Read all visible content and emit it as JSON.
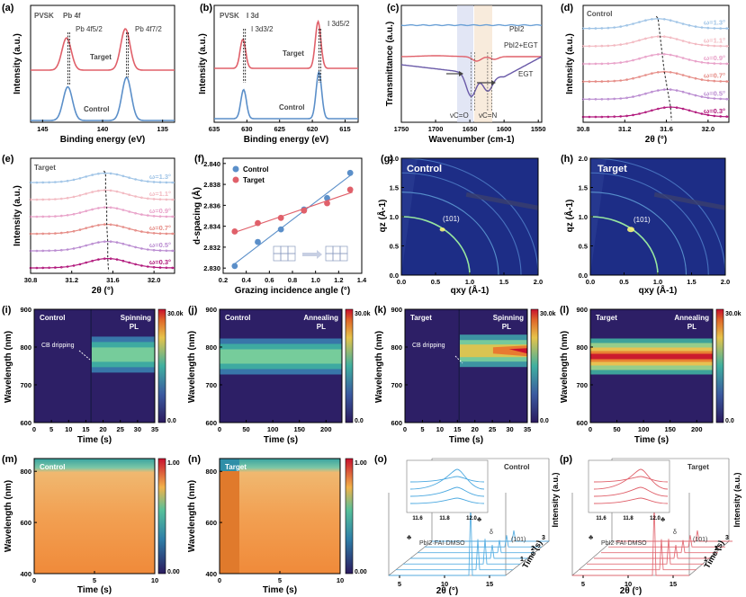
{
  "colors": {
    "control": "#5b8fc9",
    "target": "#e0606a",
    "pbi2_ir": "#6aa0d6",
    "pbi2egt_ir": "#e0606a",
    "egt_ir": "#6a5aa8",
    "heat_low": "#2b1a5e",
    "heat_high": "#c8102e"
  },
  "panels": {
    "a": {
      "letter": "(a)",
      "corner": "PVSK",
      "peak1_label": "Pb 4f5/2",
      "peak2_label": "Pb 4f7/2",
      "title_label": "Pb 4f",
      "series_top": "Target",
      "series_bottom": "Control",
      "xlabel": "Binding energy (eV)",
      "ylabel": "Intensity (a.u.)",
      "xticks": [
        "145",
        "140",
        "135"
      ]
    },
    "b": {
      "letter": "(b)",
      "corner": "PVSK",
      "title_label": "I 3d",
      "peak1_label": "I 3d3/2",
      "peak2_label": "I 3d5/2",
      "series_top": "Target",
      "series_bottom": "Control",
      "xlabel": "Binding energy (eV)",
      "ylabel": "Intensity (a.u.)",
      "xticks": [
        "635",
        "630",
        "625",
        "620",
        "615"
      ]
    },
    "c": {
      "letter": "(c)",
      "series": [
        "PbI2",
        "PbI2+EGT",
        "EGT"
      ],
      "mode1": "νC=O",
      "mode2": "νC=N",
      "xlabel": "Wavenumber (cm-1)",
      "ylabel": "Transmittance (a.u.)",
      "xticks": [
        "1750",
        "1700",
        "1650",
        "1600",
        "1550"
      ]
    },
    "d": {
      "letter": "(d)",
      "corner": "Control",
      "angles": [
        "ω=1.3°",
        "ω=1.1°",
        "ω=0.9°",
        "ω=0.7°",
        "ω=0.5°",
        "ω=0.3°"
      ],
      "xlabel": "2θ (°)",
      "ylabel": "Intensity (a.u.)",
      "xticks": [
        "30.8",
        "31.2",
        "31.6",
        "32.0"
      ]
    },
    "e": {
      "letter": "(e)",
      "corner": "Target",
      "angles": [
        "ω=1.3°",
        "ω=1.1°",
        "ω=0.9°",
        "ω=0.7°",
        "ω=0.5°",
        "ω=0.3°"
      ],
      "xlabel": "2θ (°)",
      "ylabel": "Intensity (a.u.)",
      "xticks": [
        "30.8",
        "31.2",
        "31.6",
        "32.0"
      ]
    },
    "f": {
      "letter": "(f)",
      "legend": [
        "Control",
        "Target"
      ],
      "xlabel": "Grazing incidence angle (°)",
      "ylabel": "d-spacing (Å)",
      "xticks": [
        "0.2",
        "0.4",
        "0.6",
        "0.8",
        "1.0",
        "1.2",
        "1.4"
      ],
      "yticks": [
        "2.830",
        "2.832",
        "2.834",
        "2.836",
        "2.838",
        "2.840"
      ]
    },
    "g": {
      "letter": "(g)",
      "corner": "Control",
      "peak": "(101)",
      "xlabel": "qxy (Å-1)",
      "ylabel": "qz (Å-1)",
      "xticks": [
        "0.0",
        "0.5",
        "1.0",
        "1.5",
        "2.0"
      ],
      "yticks": [
        "0.0",
        "0.5",
        "1.0",
        "1.5",
        "2.0"
      ]
    },
    "h": {
      "letter": "(h)",
      "corner": "Target",
      "peak": "(101)",
      "xlabel": "qxy (Å-1)",
      "ylabel": "qz (Å-1)",
      "xticks": [
        "0.0",
        "0.5",
        "1.0",
        "1.5",
        "2.0"
      ],
      "yticks": [
        "0.0",
        "0.5",
        "1.0",
        "1.5",
        "2.0"
      ]
    },
    "i": {
      "letter": "(i)",
      "corner": "Control",
      "mode": "Spinning",
      "mode2": "PL",
      "annot": "CB dripping",
      "xlabel": "Time (s)",
      "ylabel": "Wavelength (nm)",
      "xticks": [
        "0",
        "5",
        "10",
        "15",
        "20",
        "25",
        "30",
        "35"
      ],
      "yticks": [
        "600",
        "700",
        "800",
        "900"
      ],
      "cbar": [
        "30.0k",
        "0.0"
      ]
    },
    "j": {
      "letter": "(j)",
      "corner": "Control",
      "mode": "Annealing",
      "mode2": "PL",
      "xlabel": "Time (s)",
      "ylabel": "Wavelength (nm)",
      "xticks": [
        "0",
        "50",
        "100",
        "150",
        "200"
      ],
      "yticks": [
        "600",
        "700",
        "800",
        "900"
      ],
      "cbar": [
        "30.0k",
        "0.0"
      ]
    },
    "k": {
      "letter": "(k)",
      "corner": "Target",
      "mode": "Spinning",
      "mode2": "PL",
      "annot": "CB dripping",
      "xlabel": "Time (s)",
      "ylabel": "Wavelength (nm)",
      "xticks": [
        "0",
        "5",
        "10",
        "15",
        "20",
        "25",
        "30",
        "35"
      ],
      "yticks": [
        "600",
        "700",
        "800",
        "900"
      ],
      "cbar": [
        "30.0k",
        "0.0"
      ]
    },
    "l": {
      "letter": "(l)",
      "corner": "Target",
      "mode": "Annealing",
      "mode2": "PL",
      "xlabel": "Time (s)",
      "ylabel": "Wavelength (nm)",
      "xticks": [
        "0",
        "50",
        "100",
        "150",
        "200"
      ],
      "yticks": [
        "600",
        "700",
        "800",
        "900"
      ],
      "cbar": [
        "30.0k",
        "0.0"
      ]
    },
    "m": {
      "letter": "(m)",
      "corner": "Control",
      "xlabel": "Time (s)",
      "ylabel": "Wavelength (nm)",
      "xticks": [
        "0",
        "5",
        "10"
      ],
      "yticks": [
        "400",
        "600",
        "800"
      ],
      "cbar": [
        "1.00",
        "0.00"
      ]
    },
    "n": {
      "letter": "(n)",
      "corner": "Target",
      "xlabel": "Time (s)",
      "ylabel": "Wavelength (nm)",
      "xticks": [
        "0",
        "5",
        "10"
      ],
      "yticks": [
        "400",
        "600",
        "800"
      ],
      "cbar": [
        "1.00",
        "0.00"
      ]
    },
    "o": {
      "letter": "(o)",
      "corner": "Control",
      "phase": "PbI2·FAI·DMSO",
      "peak": "(101)",
      "xlabel": "2θ (°)",
      "zlabel": "Intensity (a.u.)",
      "tlabel": "Time (s)",
      "xticks": [
        "5",
        "10",
        "15"
      ],
      "inset_ticks": [
        "11.6",
        "11.8",
        "12.0"
      ],
      "tticks": [
        "1",
        "2",
        "3"
      ]
    },
    "p": {
      "letter": "(p)",
      "corner": "Target",
      "phase": "PbI2·FAI·DMSO",
      "peak": "(101)",
      "xlabel": "2θ (°)",
      "zlabel": "Intensity (a.u.)",
      "tlabel": "Time (s)",
      "xticks": [
        "5",
        "10",
        "15"
      ],
      "inset_ticks": [
        "11.6",
        "11.8",
        "12.0"
      ],
      "tticks": [
        "1",
        "2",
        "3"
      ]
    }
  },
  "chart_data": [
    {
      "id": "a",
      "type": "line",
      "title": "Pb 4f",
      "xlabel": "Binding energy (eV)",
      "ylabel": "Intensity (a.u.)",
      "xlim": [
        146,
        134
      ],
      "peaks_eV": [
        142.9,
        138.0
      ],
      "series": [
        {
          "name": "Target"
        },
        {
          "name": "Control"
        }
      ]
    },
    {
      "id": "b",
      "type": "line",
      "title": "I 3d",
      "xlabel": "Binding energy (eV)",
      "ylabel": "Intensity (a.u.)",
      "xlim": [
        635,
        613
      ],
      "peaks_eV": [
        630.5,
        619.0
      ],
      "series": [
        {
          "name": "Target"
        },
        {
          "name": "Control"
        }
      ]
    },
    {
      "id": "c",
      "type": "line",
      "xlabel": "Wavenumber (cm-1)",
      "ylabel": "Transmittance (a.u.)",
      "xlim": [
        1750,
        1545
      ],
      "series": [
        {
          "name": "PbI2"
        },
        {
          "name": "PbI2+EGT"
        },
        {
          "name": "EGT"
        }
      ]
    },
    {
      "id": "d",
      "type": "line",
      "xlabel": "2θ (°)",
      "ylabel": "Intensity (a.u.)",
      "xlim": [
        30.8,
        32.2
      ],
      "series_names": [
        "ω=1.3°",
        "ω=1.1°",
        "ω=0.9°",
        "ω=0.7°",
        "ω=0.5°",
        "ω=0.3°"
      ],
      "peak_2theta": [
        31.52,
        31.54,
        31.56,
        31.58,
        31.61,
        31.64
      ]
    },
    {
      "id": "e",
      "type": "line",
      "xlabel": "2θ (°)",
      "ylabel": "Intensity (a.u.)",
      "xlim": [
        30.8,
        32.2
      ],
      "series_names": [
        "ω=1.3°",
        "ω=1.1°",
        "ω=0.9°",
        "ω=0.7°",
        "ω=0.5°",
        "ω=0.3°"
      ],
      "peak_2theta": [
        31.53,
        31.53,
        31.54,
        31.54,
        31.55,
        31.55
      ]
    },
    {
      "id": "f",
      "type": "scatter",
      "xlabel": "Grazing incidence angle (°)",
      "ylabel": "d-spacing (Å)",
      "xlim": [
        0.2,
        1.4
      ],
      "ylim": [
        2.8295,
        2.8405
      ],
      "series": [
        {
          "name": "Control",
          "x": [
            0.3,
            0.5,
            0.7,
            0.9,
            1.1,
            1.3
          ],
          "values": [
            2.8302,
            2.8325,
            2.8337,
            2.8356,
            2.8367,
            2.8391
          ]
        },
        {
          "name": "Target",
          "x": [
            0.3,
            0.5,
            0.7,
            0.9,
            1.1,
            1.3
          ],
          "values": [
            2.8335,
            2.8343,
            2.8348,
            2.8355,
            2.8362,
            2.8375
          ]
        }
      ]
    },
    {
      "id": "g",
      "type": "heatmap",
      "xlabel": "qxy (Å-1)",
      "ylabel": "qz (Å-1)",
      "xlim": [
        0,
        2
      ],
      "ylim": [
        0,
        2
      ],
      "rings_q": [
        1.0,
        1.42,
        1.75,
        2.0
      ]
    },
    {
      "id": "h",
      "type": "heatmap",
      "xlabel": "qxy (Å-1)",
      "ylabel": "qz (Å-1)",
      "xlim": [
        0,
        2
      ],
      "ylim": [
        0,
        2
      ],
      "rings_q": [
        1.0,
        1.42,
        1.75,
        2.0
      ]
    },
    {
      "id": "i",
      "type": "heatmap",
      "xlabel": "Time (s)",
      "ylabel": "Wavelength (nm)",
      "xlim": [
        0,
        35
      ],
      "ylim": [
        600,
        900
      ],
      "onset_s": 16.5,
      "pl_center_nm": 780
    },
    {
      "id": "j",
      "type": "heatmap",
      "xlabel": "Time (s)",
      "ylabel": "Wavelength (nm)",
      "xlim": [
        0,
        230
      ],
      "ylim": [
        600,
        900
      ],
      "pl_center_nm": 775
    },
    {
      "id": "k",
      "type": "heatmap",
      "xlabel": "Time (s)",
      "ylabel": "Wavelength (nm)",
      "xlim": [
        0,
        35
      ],
      "ylim": [
        600,
        900
      ],
      "onset_s": 15.5,
      "pl_center_nm": 790
    },
    {
      "id": "l",
      "type": "heatmap",
      "xlabel": "Time (s)",
      "ylabel": "Wavelength (nm)",
      "xlim": [
        0,
        230
      ],
      "ylim": [
        600,
        900
      ],
      "pl_center_nm": 775
    },
    {
      "id": "m",
      "type": "heatmap",
      "xlabel": "Time (s)",
      "ylabel": "Wavelength (nm)",
      "xlim": [
        0,
        10
      ],
      "ylim": [
        400,
        850
      ]
    },
    {
      "id": "n",
      "type": "heatmap",
      "xlabel": "Time (s)",
      "ylabel": "Wavelength (nm)",
      "xlim": [
        0,
        10
      ],
      "ylim": [
        400,
        850
      ]
    },
    {
      "id": "o",
      "type": "line",
      "xlabel": "2θ (°)",
      "zlabel": "Intensity (a.u.)",
      "peaks_2theta": [
        11.8,
        14.0
      ]
    },
    {
      "id": "p",
      "type": "line",
      "xlabel": "2θ (°)",
      "zlabel": "Intensity (a.u.)",
      "peaks_2theta": [
        11.8,
        14.0
      ]
    }
  ]
}
